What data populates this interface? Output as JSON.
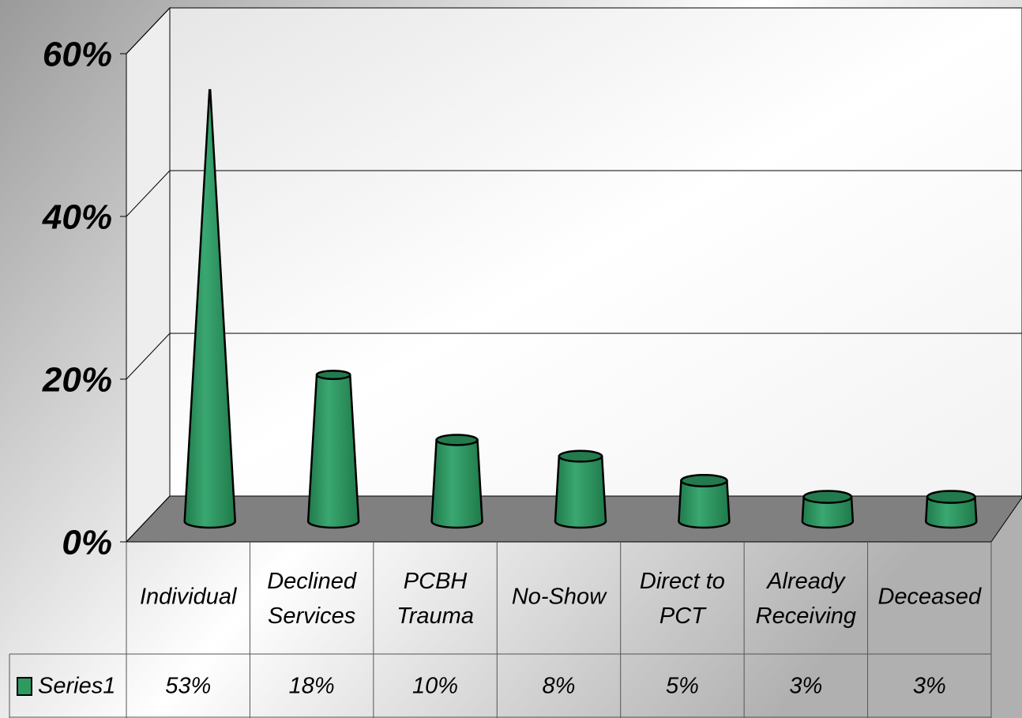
{
  "chart_data": {
    "type": "bar",
    "categories": [
      "Individual",
      "Declined Services",
      "PCBH Trauma",
      "No-Show",
      "Direct to PCT",
      "Already Receiving",
      "Deceased"
    ],
    "series": [
      {
        "name": "Series1",
        "color": "#2e9a62",
        "values": [
          53,
          18,
          10,
          8,
          5,
          3,
          3
        ],
        "value_labels": [
          "53%",
          "18%",
          "10%",
          "8%",
          "5%",
          "3%",
          "3%"
        ]
      }
    ],
    "ylim": [
      0,
      60
    ],
    "yticks": [
      {
        "value": 0,
        "label": "0%"
      },
      {
        "value": 20,
        "label": "20%"
      },
      {
        "value": 40,
        "label": "40%"
      },
      {
        "value": 60,
        "label": "60%"
      }
    ],
    "grid": true,
    "data_table": true
  }
}
